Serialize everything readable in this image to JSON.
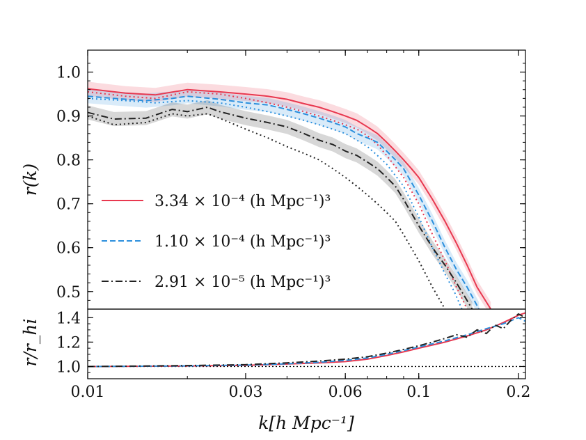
{
  "chart_data": [
    {
      "type": "line",
      "panel": "main",
      "xlabel": "k[h Mpc⁻¹]",
      "ylabel": "r(k)",
      "xscale": "log",
      "xlim": [
        0.01,
        0.21
      ],
      "ylim": [
        0.46,
        1.05
      ],
      "xticks": [
        "0.01",
        "0.03",
        "0.06",
        "0.1",
        "0.2"
      ],
      "yticks": [
        "0.5",
        "0.6",
        "0.7",
        "0.8",
        "0.9",
        "1.0"
      ],
      "legend_position": "lower-left",
      "series": [
        {
          "name": "3.34 × 10⁻⁴ (h Mpc⁻¹)³",
          "color": "#e8384f",
          "dash": "solid",
          "band": true,
          "x": [
            0.01,
            0.013,
            0.016,
            0.02,
            0.025,
            0.03,
            0.035,
            0.04,
            0.045,
            0.05,
            0.055,
            0.06,
            0.065,
            0.07,
            0.075,
            0.08,
            0.085,
            0.09,
            0.095,
            0.1,
            0.11,
            0.12,
            0.13,
            0.14,
            0.15,
            0.165
          ],
          "y": [
            0.962,
            0.952,
            0.948,
            0.96,
            0.955,
            0.95,
            0.945,
            0.938,
            0.928,
            0.92,
            0.91,
            0.9,
            0.89,
            0.875,
            0.86,
            0.84,
            0.82,
            0.8,
            0.78,
            0.76,
            0.71,
            0.66,
            0.61,
            0.56,
            0.51,
            0.46
          ]
        },
        {
          "name": "",
          "color": "#e8384f",
          "dash": "dotted",
          "band": false,
          "x": [
            0.01,
            0.013,
            0.016,
            0.02,
            0.025,
            0.03,
            0.035,
            0.04,
            0.045,
            0.05,
            0.055,
            0.06,
            0.065,
            0.07,
            0.075,
            0.08,
            0.09,
            0.1,
            0.11,
            0.12,
            0.13,
            0.14
          ],
          "y": [
            0.955,
            0.945,
            0.94,
            0.955,
            0.95,
            0.94,
            0.93,
            0.92,
            0.91,
            0.9,
            0.89,
            0.88,
            0.87,
            0.855,
            0.835,
            0.81,
            0.76,
            0.7,
            0.63,
            0.57,
            0.51,
            0.46
          ]
        },
        {
          "name": "1.10 × 10⁻⁴ (h Mpc⁻¹)³",
          "color": "#2b8fdd",
          "dash": "dashed",
          "band": true,
          "x": [
            0.01,
            0.012,
            0.015,
            0.018,
            0.02,
            0.025,
            0.03,
            0.035,
            0.04,
            0.045,
            0.05,
            0.055,
            0.06,
            0.065,
            0.07,
            0.075,
            0.08,
            0.085,
            0.09,
            0.1,
            0.11,
            0.12,
            0.13,
            0.14,
            0.152
          ],
          "y": [
            0.945,
            0.94,
            0.935,
            0.94,
            0.945,
            0.938,
            0.93,
            0.925,
            0.915,
            0.905,
            0.895,
            0.885,
            0.875,
            0.86,
            0.85,
            0.84,
            0.82,
            0.8,
            0.78,
            0.72,
            0.66,
            0.6,
            0.55,
            0.51,
            0.46
          ]
        },
        {
          "name": "",
          "color": "#2b8fdd",
          "dash": "dotted",
          "band": false,
          "x": [
            0.01,
            0.013,
            0.016,
            0.02,
            0.025,
            0.03,
            0.035,
            0.04,
            0.045,
            0.05,
            0.055,
            0.06,
            0.065,
            0.07,
            0.075,
            0.08,
            0.09,
            0.1,
            0.11,
            0.12,
            0.128,
            0.135
          ],
          "y": [
            0.94,
            0.935,
            0.93,
            0.935,
            0.93,
            0.92,
            0.91,
            0.9,
            0.89,
            0.88,
            0.87,
            0.86,
            0.845,
            0.83,
            0.81,
            0.79,
            0.74,
            0.67,
            0.6,
            0.54,
            0.5,
            0.46
          ]
        },
        {
          "name": "2.91 × 10⁻⁵ (h Mpc⁻¹)³",
          "color": "#222222",
          "dash": "dashdot",
          "band": true,
          "x": [
            0.01,
            0.012,
            0.015,
            0.018,
            0.02,
            0.023,
            0.025,
            0.03,
            0.035,
            0.04,
            0.045,
            0.05,
            0.055,
            0.06,
            0.065,
            0.07,
            0.075,
            0.08,
            0.085,
            0.09,
            0.1,
            0.11,
            0.12,
            0.13,
            0.145
          ],
          "y": [
            0.908,
            0.893,
            0.895,
            0.915,
            0.91,
            0.92,
            0.91,
            0.895,
            0.885,
            0.875,
            0.86,
            0.845,
            0.835,
            0.82,
            0.81,
            0.795,
            0.78,
            0.76,
            0.74,
            0.71,
            0.65,
            0.6,
            0.56,
            0.52,
            0.46
          ]
        },
        {
          "name": "",
          "color": "#222222",
          "dash": "dotted",
          "band": false,
          "x": [
            0.01,
            0.012,
            0.015,
            0.018,
            0.02,
            0.023,
            0.025,
            0.03,
            0.035,
            0.04,
            0.045,
            0.05,
            0.055,
            0.06,
            0.065,
            0.07,
            0.075,
            0.08,
            0.085,
            0.09,
            0.1,
            0.11,
            0.12
          ],
          "y": [
            0.9,
            0.88,
            0.885,
            0.905,
            0.9,
            0.905,
            0.895,
            0.87,
            0.85,
            0.83,
            0.815,
            0.8,
            0.78,
            0.76,
            0.74,
            0.72,
            0.7,
            0.68,
            0.66,
            0.63,
            0.57,
            0.51,
            0.46
          ]
        }
      ]
    },
    {
      "type": "line",
      "panel": "ratio",
      "xlabel": "k[h Mpc⁻¹]",
      "ylabel": "r/r_hi",
      "xscale": "log",
      "xlim": [
        0.01,
        0.21
      ],
      "ylim": [
        0.9,
        1.47
      ],
      "yticks": [
        "1.0",
        "1.2",
        "1.4"
      ],
      "reference_line": 1.0,
      "series": [
        {
          "name": "3.34 × 10⁻⁴ (h Mpc⁻¹)³",
          "color": "#e8384f",
          "dash": "solid",
          "x": [
            0.01,
            0.02,
            0.03,
            0.04,
            0.05,
            0.06,
            0.07,
            0.08,
            0.09,
            0.1,
            0.12,
            0.14,
            0.16,
            0.18,
            0.2,
            0.21
          ],
          "y": [
            1.0,
            1.005,
            1.01,
            1.02,
            1.03,
            1.04,
            1.06,
            1.09,
            1.12,
            1.15,
            1.2,
            1.25,
            1.3,
            1.36,
            1.42,
            1.44
          ]
        },
        {
          "name": "1.10 × 10⁻⁴ (h Mpc⁻¹)³",
          "color": "#2b8fdd",
          "dash": "dashed",
          "x": [
            0.01,
            0.02,
            0.03,
            0.04,
            0.05,
            0.06,
            0.07,
            0.08,
            0.09,
            0.1,
            0.12,
            0.14,
            0.16,
            0.18,
            0.2,
            0.21
          ],
          "y": [
            1.0,
            1.005,
            1.012,
            1.022,
            1.035,
            1.05,
            1.07,
            1.1,
            1.13,
            1.16,
            1.21,
            1.26,
            1.31,
            1.35,
            1.4,
            1.37
          ]
        },
        {
          "name": "2.91 × 10⁻⁵ (h Mpc⁻¹)³",
          "color": "#222222",
          "dash": "dashdot",
          "x": [
            0.01,
            0.02,
            0.03,
            0.04,
            0.05,
            0.06,
            0.07,
            0.08,
            0.09,
            0.1,
            0.11,
            0.12,
            0.13,
            0.14,
            0.15,
            0.16,
            0.17,
            0.18,
            0.19,
            0.2,
            0.21
          ],
          "y": [
            1.0,
            1.008,
            1.015,
            1.03,
            1.045,
            1.06,
            1.08,
            1.11,
            1.14,
            1.17,
            1.2,
            1.23,
            1.26,
            1.24,
            1.3,
            1.27,
            1.34,
            1.31,
            1.38,
            1.43,
            1.4
          ]
        }
      ]
    }
  ]
}
